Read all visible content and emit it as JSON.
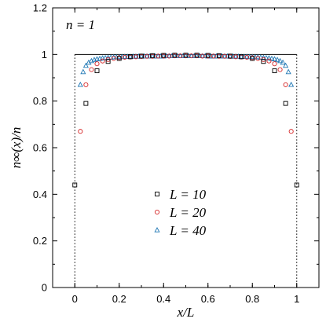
{
  "chart_data": {
    "type": "scatter",
    "xlabel": "x/L",
    "ylabel": "n∞(x)/n",
    "annotation": "n = 1",
    "xlim": [
      -0.1,
      1.1
    ],
    "ylim": [
      0,
      1.2
    ],
    "xticks": [
      0,
      0.2,
      0.4,
      0.6,
      0.8,
      1
    ],
    "xtick_labels": [
      "0",
      "0.2",
      "0.4",
      "0.6",
      "0.8",
      "1"
    ],
    "yticks": [
      0,
      0.2,
      0.4,
      0.6,
      0.8,
      1,
      1.2
    ],
    "ytick_labels": [
      "0",
      "0.2",
      "0.4",
      "0.6",
      "0.8",
      "1",
      "1.2"
    ],
    "grid": false,
    "legend_position": "center-bottom",
    "reference_lines": {
      "horizontal": {
        "y": 1,
        "from_x": 0,
        "to_x": 1,
        "style": "solid"
      },
      "vertical": [
        {
          "x": 0,
          "style": "dotted"
        },
        {
          "x": 1,
          "style": "dotted"
        }
      ]
    },
    "series": [
      {
        "name": "L = 10",
        "marker": "square",
        "color": "#000000",
        "x": [
          0.0,
          0.05,
          0.1,
          0.15,
          0.2,
          0.25,
          0.3,
          0.35,
          0.4,
          0.45,
          0.5,
          0.55,
          0.6,
          0.65,
          0.7,
          0.75,
          0.8,
          0.85,
          0.9,
          0.95,
          1.0
        ],
        "y": [
          0.44,
          0.79,
          0.93,
          0.97,
          0.983,
          0.99,
          0.993,
          0.995,
          0.996,
          0.997,
          0.997,
          0.997,
          0.996,
          0.995,
          0.993,
          0.99,
          0.983,
          0.97,
          0.93,
          0.79,
          0.44
        ]
      },
      {
        "name": "L = 20",
        "marker": "circle",
        "color": "#d62728",
        "x": [
          0.025,
          0.05,
          0.075,
          0.1,
          0.125,
          0.15,
          0.175,
          0.2,
          0.225,
          0.25,
          0.275,
          0.3,
          0.325,
          0.35,
          0.375,
          0.4,
          0.425,
          0.45,
          0.475,
          0.5,
          0.525,
          0.55,
          0.575,
          0.6,
          0.625,
          0.65,
          0.675,
          0.7,
          0.725,
          0.75,
          0.775,
          0.8,
          0.825,
          0.85,
          0.875,
          0.9,
          0.925,
          0.95,
          0.975
        ],
        "y": [
          0.67,
          0.87,
          0.935,
          0.96,
          0.972,
          0.978,
          0.983,
          0.986,
          0.988,
          0.989,
          0.99,
          0.991,
          0.992,
          0.992,
          0.993,
          0.993,
          0.993,
          0.994,
          0.994,
          0.994,
          0.994,
          0.994,
          0.993,
          0.993,
          0.993,
          0.992,
          0.992,
          0.991,
          0.99,
          0.989,
          0.988,
          0.986,
          0.983,
          0.978,
          0.972,
          0.96,
          0.935,
          0.87,
          0.67
        ]
      },
      {
        "name": "L = 40",
        "marker": "triangle",
        "color": "#1f77b4",
        "x": [
          0.025,
          0.0375,
          0.05,
          0.0625,
          0.075,
          0.0875,
          0.1,
          0.1125,
          0.125,
          0.1375,
          0.15,
          0.1625,
          0.175,
          0.1875,
          0.2,
          0.2125,
          0.225,
          0.2375,
          0.25,
          0.2625,
          0.275,
          0.2875,
          0.3,
          0.3125,
          0.325,
          0.3375,
          0.35,
          0.3625,
          0.375,
          0.3875,
          0.4,
          0.4125,
          0.425,
          0.4375,
          0.45,
          0.4625,
          0.475,
          0.4875,
          0.5,
          0.5125,
          0.525,
          0.5375,
          0.55,
          0.5625,
          0.575,
          0.5875,
          0.6,
          0.6125,
          0.625,
          0.6375,
          0.65,
          0.6625,
          0.675,
          0.6875,
          0.7,
          0.7125,
          0.725,
          0.7375,
          0.75,
          0.7625,
          0.775,
          0.7875,
          0.8,
          0.8125,
          0.825,
          0.8375,
          0.85,
          0.8625,
          0.875,
          0.8875,
          0.9,
          0.9125,
          0.925,
          0.9375,
          0.95,
          0.9625,
          0.975
        ],
        "y": [
          0.87,
          0.925,
          0.952,
          0.965,
          0.972,
          0.977,
          0.98,
          0.982,
          0.984,
          0.985,
          0.986,
          0.987,
          0.988,
          0.988,
          0.989,
          0.989,
          0.99,
          0.99,
          0.99,
          0.991,
          0.991,
          0.991,
          0.991,
          0.992,
          0.992,
          0.992,
          0.992,
          0.992,
          0.992,
          0.992,
          0.992,
          0.993,
          0.993,
          0.993,
          0.993,
          0.993,
          0.993,
          0.993,
          0.993,
          0.993,
          0.993,
          0.993,
          0.993,
          0.993,
          0.993,
          0.993,
          0.992,
          0.992,
          0.992,
          0.992,
          0.992,
          0.992,
          0.992,
          0.992,
          0.991,
          0.991,
          0.991,
          0.991,
          0.99,
          0.99,
          0.99,
          0.989,
          0.989,
          0.988,
          0.988,
          0.987,
          0.986,
          0.985,
          0.984,
          0.982,
          0.98,
          0.977,
          0.972,
          0.965,
          0.952,
          0.925,
          0.87
        ]
      }
    ]
  }
}
